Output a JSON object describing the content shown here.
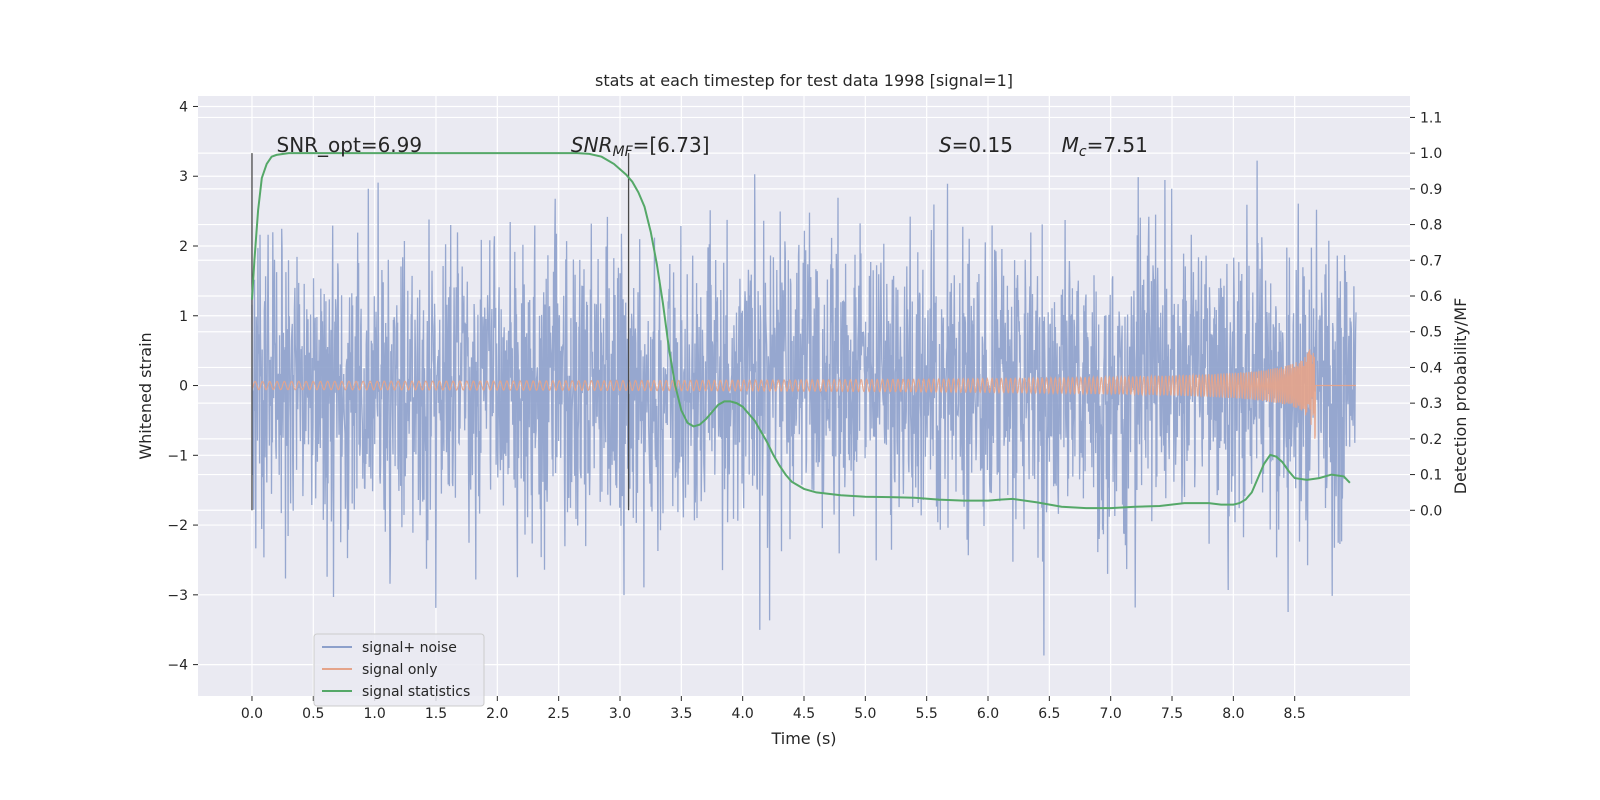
{
  "chart_data": {
    "type": "line",
    "title": "stats at each timestep for test data 1998 [signal=1]",
    "xlabel": "Time (s)",
    "ylabel": "Whitened strain",
    "ylabel_right": "Detection probability/MF",
    "xlim": [
      -0.44,
      9.44
    ],
    "ylim": [
      -4.45,
      4.15
    ],
    "ylim_right": [
      -0.52,
      1.16
    ],
    "grid": true,
    "legend_position": "lower-left",
    "x_ticks": [
      "0.0",
      "0.5",
      "1.0",
      "1.5",
      "2.0",
      "2.5",
      "3.0",
      "3.5",
      "4.0",
      "4.5",
      "5.0",
      "5.5",
      "6.0",
      "6.5",
      "7.0",
      "7.5",
      "8.0",
      "8.5"
    ],
    "y_ticks": [
      "4",
      "3",
      "2",
      "1",
      "0",
      "−1",
      "−2",
      "−3",
      "−4"
    ],
    "y_ticks_right": [
      "1.1",
      "1.0",
      "0.9",
      "0.8",
      "0.7",
      "0.6",
      "0.5",
      "0.4",
      "0.3",
      "0.2",
      "0.1",
      "0.0"
    ],
    "annotations": {
      "snr_opt": "SNR_opt=6.99",
      "snr_mf_prefix": "SNR",
      "snr_mf_sub": "MF",
      "snr_mf_value": "=[6.73]",
      "s_symbol": "S",
      "s_value": "=0.15",
      "mc_symbol": "M",
      "mc_sub": "c",
      "mc_value": "=7.51"
    },
    "vertical_lines_x": [
      0.0,
      3.07
    ],
    "series": [
      {
        "name": "signal+ noise",
        "axis": "left",
        "color": "#8da0cb",
        "description_kind": "dense noise",
        "x_range": [
          0.0,
          9.0
        ],
        "typical_envelope": [
          -2.0,
          2.2
        ]
      },
      {
        "name": "signal only",
        "axis": "left",
        "color": "#e5a48a",
        "description_kind": "chirp",
        "x_range": [
          0.0,
          9.0
        ],
        "merger_time": 8.67,
        "peak_amplitude": 0.9
      },
      {
        "name": "signal statistics",
        "axis": "right",
        "color": "#55a868",
        "x": [
          0.0,
          0.02,
          0.05,
          0.08,
          0.12,
          0.16,
          0.2,
          0.3,
          0.5,
          1.0,
          2.0,
          2.5,
          2.65,
          2.75,
          2.85,
          2.95,
          3.05,
          3.1,
          3.15,
          3.2,
          3.25,
          3.3,
          3.35,
          3.4,
          3.45,
          3.5,
          3.55,
          3.6,
          3.65,
          3.7,
          3.75,
          3.8,
          3.85,
          3.9,
          3.95,
          4.0,
          4.05,
          4.1,
          4.15,
          4.2,
          4.25,
          4.3,
          4.35,
          4.4,
          4.5,
          4.6,
          4.8,
          5.0,
          5.2,
          5.4,
          5.6,
          5.8,
          6.0,
          6.1,
          6.2,
          6.4,
          6.6,
          6.8,
          7.0,
          7.2,
          7.4,
          7.6,
          7.8,
          7.9,
          8.0,
          8.05,
          8.1,
          8.15,
          8.2,
          8.25,
          8.3,
          8.35,
          8.4,
          8.45,
          8.5,
          8.6,
          8.7,
          8.8,
          8.9,
          8.95
        ],
        "y": [
          0.59,
          0.7,
          0.84,
          0.93,
          0.97,
          0.99,
          0.995,
          1.0,
          1.0,
          1.0,
          1.0,
          1.0,
          1.0,
          0.998,
          0.99,
          0.97,
          0.94,
          0.92,
          0.89,
          0.85,
          0.78,
          0.69,
          0.58,
          0.45,
          0.35,
          0.28,
          0.245,
          0.235,
          0.24,
          0.255,
          0.275,
          0.295,
          0.305,
          0.305,
          0.3,
          0.29,
          0.27,
          0.25,
          0.22,
          0.19,
          0.155,
          0.125,
          0.1,
          0.08,
          0.06,
          0.05,
          0.042,
          0.038,
          0.037,
          0.035,
          0.03,
          0.027,
          0.027,
          0.03,
          0.032,
          0.022,
          0.01,
          0.006,
          0.006,
          0.01,
          0.012,
          0.02,
          0.02,
          0.016,
          0.016,
          0.02,
          0.03,
          0.05,
          0.09,
          0.13,
          0.155,
          0.15,
          0.135,
          0.11,
          0.09,
          0.085,
          0.09,
          0.1,
          0.095,
          0.077
        ]
      }
    ]
  }
}
